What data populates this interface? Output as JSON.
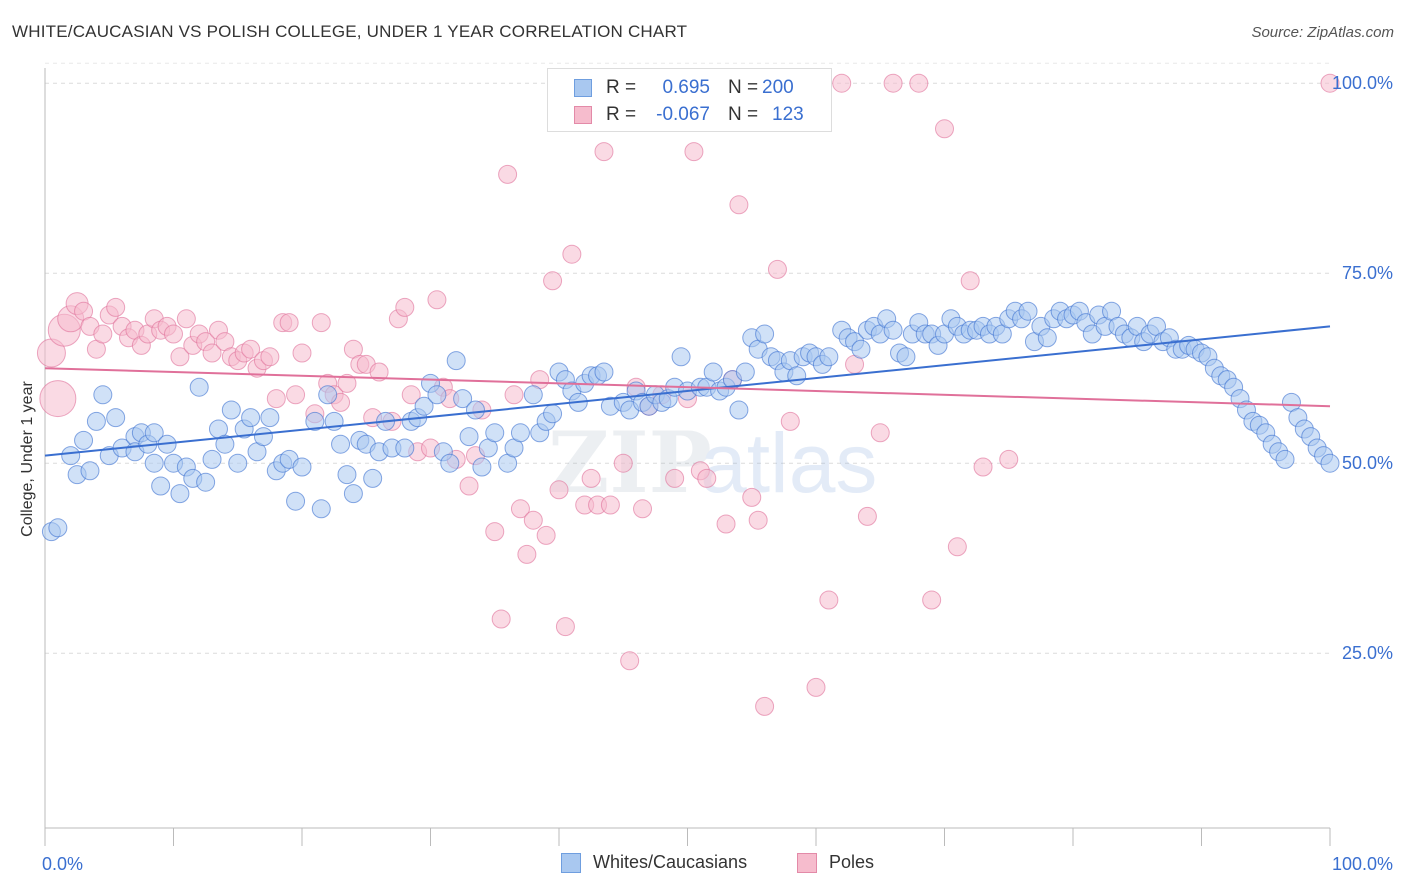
{
  "title": "WHITE/CAUCASIAN VS POLISH COLLEGE, UNDER 1 YEAR CORRELATION CHART",
  "source": "Source: ZipAtlas.com",
  "watermark": {
    "zip": "ZIP",
    "atlas": "atlas"
  },
  "colors": {
    "blue": "#3a6fd0",
    "blue_fill": "#a9c8f0",
    "pink": "#e0709a",
    "pink_fill": "#f6bccd"
  },
  "legend_top": {
    "rows": [
      {
        "r_label": "R =",
        "r_value": "0.695",
        "n_label": "N =",
        "n_value": "200"
      },
      {
        "r_label": "R =",
        "r_value": "-0.067",
        "n_label": "N =",
        "n_value": "123"
      }
    ]
  },
  "legend_bottom": {
    "items": [
      "Whites/Caucasians",
      "Poles"
    ]
  },
  "chart_data": {
    "type": "scatter",
    "xlabel": "",
    "ylabel": "College, Under 1 year",
    "xlim": [
      0,
      100
    ],
    "ylim": [
      2,
      102
    ],
    "x_tick_labels": [
      "0.0%",
      "100.0%"
    ],
    "y_ticks": [
      25,
      50,
      75,
      100
    ],
    "y_tick_labels": [
      "25.0%",
      "50.0%",
      "75.0%",
      "100.0%"
    ],
    "grid": true,
    "series": [
      {
        "name": "Whites/Caucasians",
        "r": 0.695,
        "n": 200,
        "trend": {
          "x": [
            0,
            100
          ],
          "y": [
            51.0,
            68.0
          ]
        },
        "points": [
          [
            0.5,
            41
          ],
          [
            1,
            41.5
          ],
          [
            2,
            51
          ],
          [
            2.5,
            48.5
          ],
          [
            3,
            53
          ],
          [
            3.5,
            49
          ],
          [
            4,
            55.5
          ],
          [
            4.5,
            59
          ],
          [
            5,
            51
          ],
          [
            5.5,
            56
          ],
          [
            6,
            52
          ],
          [
            7,
            53.5
          ],
          [
            7,
            51.5
          ],
          [
            7.5,
            54
          ],
          [
            8,
            52.5
          ],
          [
            8.5,
            54
          ],
          [
            8.5,
            50
          ],
          [
            9,
            47
          ],
          [
            9.5,
            52.5
          ],
          [
            10,
            50
          ],
          [
            10.5,
            46
          ],
          [
            11,
            49.5
          ],
          [
            11.5,
            48
          ],
          [
            12,
            60
          ],
          [
            12.5,
            47.5
          ],
          [
            13,
            50.5
          ],
          [
            13.5,
            54.5
          ],
          [
            14,
            52.5
          ],
          [
            14.5,
            57
          ],
          [
            15,
            50
          ],
          [
            15.5,
            54.5
          ],
          [
            16,
            56
          ],
          [
            16.5,
            51.5
          ],
          [
            17,
            53.5
          ],
          [
            17.5,
            56
          ],
          [
            18,
            49
          ],
          [
            18.5,
            50
          ],
          [
            19,
            50.5
          ],
          [
            19.5,
            45
          ],
          [
            20,
            49.5
          ],
          [
            21,
            55.5
          ],
          [
            21.5,
            44
          ],
          [
            22,
            59
          ],
          [
            22.5,
            55.5
          ],
          [
            23,
            52.5
          ],
          [
            23.5,
            48.5
          ],
          [
            24,
            46
          ],
          [
            24.5,
            53
          ],
          [
            25,
            52.5
          ],
          [
            25.5,
            48
          ],
          [
            26,
            51.5
          ],
          [
            26.5,
            55.5
          ],
          [
            27,
            52
          ],
          [
            28,
            52
          ],
          [
            28.5,
            55.5
          ],
          [
            29,
            56
          ],
          [
            29.5,
            57.5
          ],
          [
            30,
            60.5
          ],
          [
            30.5,
            59
          ],
          [
            31,
            51.5
          ],
          [
            31.5,
            50
          ],
          [
            32,
            63.5
          ],
          [
            32.5,
            58.5
          ],
          [
            33,
            53.5
          ],
          [
            33.5,
            57
          ],
          [
            34,
            49.5
          ],
          [
            34.5,
            52
          ],
          [
            35,
            54
          ],
          [
            36,
            50
          ],
          [
            36.5,
            52
          ],
          [
            37,
            54
          ],
          [
            38,
            59
          ],
          [
            38.5,
            54
          ],
          [
            39,
            55.5
          ],
          [
            39.5,
            56.5
          ],
          [
            40,
            62
          ],
          [
            40.5,
            61
          ],
          [
            41,
            59.5
          ],
          [
            41.5,
            58
          ],
          [
            42,
            60.5
          ],
          [
            42.5,
            61.5
          ],
          [
            43,
            61.5
          ],
          [
            43.5,
            62
          ],
          [
            44,
            57.5
          ],
          [
            45,
            58
          ],
          [
            45.5,
            57
          ],
          [
            46,
            59.5
          ],
          [
            46.5,
            58
          ],
          [
            47,
            57.5
          ],
          [
            47.5,
            59
          ],
          [
            48,
            58
          ],
          [
            48.5,
            58.5
          ],
          [
            49,
            60
          ],
          [
            49.5,
            64
          ],
          [
            50,
            59.5
          ],
          [
            51,
            60
          ],
          [
            51.5,
            60
          ],
          [
            52,
            62
          ],
          [
            52.5,
            59.5
          ],
          [
            53,
            60
          ],
          [
            53.5,
            61
          ],
          [
            54,
            57
          ],
          [
            54.5,
            62
          ],
          [
            55,
            66.5
          ],
          [
            55.5,
            65
          ],
          [
            56,
            67
          ],
          [
            56.5,
            64
          ],
          [
            57,
            63.5
          ],
          [
            57.5,
            62
          ],
          [
            58,
            63.5
          ],
          [
            58.5,
            61.5
          ],
          [
            59,
            64
          ],
          [
            59.5,
            64.5
          ],
          [
            60,
            64
          ],
          [
            60.5,
            63
          ],
          [
            61,
            64
          ],
          [
            62,
            67.5
          ],
          [
            62.5,
            66.5
          ],
          [
            63,
            66
          ],
          [
            63.5,
            65
          ],
          [
            64,
            67.5
          ],
          [
            64.5,
            68
          ],
          [
            65,
            67
          ],
          [
            65.5,
            69
          ],
          [
            66,
            67.5
          ],
          [
            66.5,
            64.5
          ],
          [
            67,
            64
          ],
          [
            67.5,
            67
          ],
          [
            68,
            68.5
          ],
          [
            68.5,
            67
          ],
          [
            69,
            67
          ],
          [
            69.5,
            65.5
          ],
          [
            70,
            67
          ],
          [
            70.5,
            69
          ],
          [
            71,
            68
          ],
          [
            71.5,
            67
          ],
          [
            72,
            67.5
          ],
          [
            72.5,
            67.5
          ],
          [
            73,
            68
          ],
          [
            73.5,
            67
          ],
          [
            74,
            68
          ],
          [
            74.5,
            67
          ],
          [
            75,
            69
          ],
          [
            75.5,
            70
          ],
          [
            76,
            69
          ],
          [
            76.5,
            70
          ],
          [
            77,
            66
          ],
          [
            77.5,
            68
          ],
          [
            78,
            66.5
          ],
          [
            78.5,
            69
          ],
          [
            79,
            70
          ],
          [
            79.5,
            69
          ],
          [
            80,
            69.5
          ],
          [
            80.5,
            70
          ],
          [
            81,
            68.5
          ],
          [
            81.5,
            67
          ],
          [
            82,
            69.5
          ],
          [
            82.5,
            68
          ],
          [
            83,
            70
          ],
          [
            83.5,
            68
          ],
          [
            84,
            67
          ],
          [
            84.5,
            66.5
          ],
          [
            85,
            68
          ],
          [
            85.5,
            66
          ],
          [
            86,
            67
          ],
          [
            86.5,
            68
          ],
          [
            87,
            66
          ],
          [
            87.5,
            66.5
          ],
          [
            88,
            65
          ],
          [
            88.5,
            65
          ],
          [
            89,
            65.5
          ],
          [
            89.5,
            65
          ],
          [
            90,
            64.5
          ],
          [
            90.5,
            64
          ],
          [
            91,
            62.5
          ],
          [
            91.5,
            61.5
          ],
          [
            92,
            61
          ],
          [
            92.5,
            60
          ],
          [
            93,
            58.5
          ],
          [
            93.5,
            57
          ],
          [
            94,
            55.5
          ],
          [
            94.5,
            55
          ],
          [
            95,
            54
          ],
          [
            95.5,
            52.5
          ],
          [
            96,
            51.5
          ],
          [
            96.5,
            50.5
          ],
          [
            97,
            58
          ],
          [
            97.5,
            56
          ],
          [
            98,
            54.5
          ],
          [
            98.5,
            53.5
          ],
          [
            99,
            52
          ],
          [
            99.5,
            51
          ],
          [
            100,
            50
          ]
        ]
      },
      {
        "name": "Poles",
        "r": -0.067,
        "n": 123,
        "trend": {
          "x": [
            0,
            100
          ],
          "y": [
            62.5,
            57.5
          ]
        },
        "points": [
          [
            0.5,
            64.5
          ],
          [
            1,
            58.5
          ],
          [
            1.5,
            67.5
          ],
          [
            2,
            69
          ],
          [
            2.5,
            71
          ],
          [
            3,
            70
          ],
          [
            3.5,
            68
          ],
          [
            4,
            65
          ],
          [
            4.5,
            67
          ],
          [
            5,
            69.5
          ],
          [
            5.5,
            70.5
          ],
          [
            6,
            68
          ],
          [
            6.5,
            66.5
          ],
          [
            7,
            67.5
          ],
          [
            7.5,
            65.5
          ],
          [
            8,
            67
          ],
          [
            8.5,
            69
          ],
          [
            9,
            67.5
          ],
          [
            9.5,
            68
          ],
          [
            10,
            67
          ],
          [
            10.5,
            64
          ],
          [
            11,
            69
          ],
          [
            11.5,
            65.5
          ],
          [
            12,
            67
          ],
          [
            12.5,
            66
          ],
          [
            13,
            64.5
          ],
          [
            13.5,
            67.5
          ],
          [
            14,
            66
          ],
          [
            14.5,
            64
          ],
          [
            15,
            63.5
          ],
          [
            15.5,
            64.5
          ],
          [
            16,
            65
          ],
          [
            16.5,
            62.5
          ],
          [
            17,
            63.5
          ],
          [
            17.5,
            64
          ],
          [
            18,
            58.5
          ],
          [
            18.5,
            68.5
          ],
          [
            19,
            68.5
          ],
          [
            19.5,
            59
          ],
          [
            20,
            64.5
          ],
          [
            21,
            56.5
          ],
          [
            21.5,
            68.5
          ],
          [
            22,
            60.5
          ],
          [
            22.5,
            59
          ],
          [
            23,
            58
          ],
          [
            23.5,
            60.5
          ],
          [
            24,
            65
          ],
          [
            24.5,
            63
          ],
          [
            25,
            63
          ],
          [
            25.5,
            56
          ],
          [
            26,
            62
          ],
          [
            27,
            55.5
          ],
          [
            27.5,
            69
          ],
          [
            28,
            70.5
          ],
          [
            28.5,
            59
          ],
          [
            29,
            51.5
          ],
          [
            30,
            52
          ],
          [
            30.5,
            71.5
          ],
          [
            31,
            60
          ],
          [
            31.5,
            58.5
          ],
          [
            32,
            50.5
          ],
          [
            33,
            47
          ],
          [
            33.5,
            51
          ],
          [
            34,
            57
          ],
          [
            35,
            41
          ],
          [
            35.5,
            29.5
          ],
          [
            36,
            88
          ],
          [
            36.5,
            59
          ],
          [
            37,
            44
          ],
          [
            37.5,
            38
          ],
          [
            38,
            42.5
          ],
          [
            38.5,
            61
          ],
          [
            39,
            40.5
          ],
          [
            39.5,
            74
          ],
          [
            40,
            46.5
          ],
          [
            40.5,
            28.5
          ],
          [
            41,
            77.5
          ],
          [
            42,
            44.5
          ],
          [
            42.5,
            48
          ],
          [
            43,
            44.5
          ],
          [
            43.5,
            91
          ],
          [
            44,
            44.5
          ],
          [
            45,
            50
          ],
          [
            45.5,
            24
          ],
          [
            46,
            60
          ],
          [
            46.5,
            44
          ],
          [
            47,
            57.5
          ],
          [
            48,
            59
          ],
          [
            49,
            48
          ],
          [
            50,
            58.5
          ],
          [
            50.5,
            91
          ],
          [
            51,
            49
          ],
          [
            51.5,
            48
          ],
          [
            53,
            42
          ],
          [
            53.5,
            61
          ],
          [
            54,
            84
          ],
          [
            55,
            45.5
          ],
          [
            55.5,
            42.5
          ],
          [
            56,
            18
          ],
          [
            57,
            75.5
          ],
          [
            58,
            55.5
          ],
          [
            60,
            20.5
          ],
          [
            61,
            32
          ],
          [
            62,
            100
          ],
          [
            63,
            63
          ],
          [
            64,
            43
          ],
          [
            65,
            54
          ],
          [
            66,
            100
          ],
          [
            68,
            100
          ],
          [
            69,
            32
          ],
          [
            70,
            94
          ],
          [
            71,
            39
          ],
          [
            72,
            74
          ],
          [
            73,
            49.5
          ],
          [
            75,
            50.5
          ],
          [
            100,
            100
          ]
        ]
      }
    ]
  }
}
